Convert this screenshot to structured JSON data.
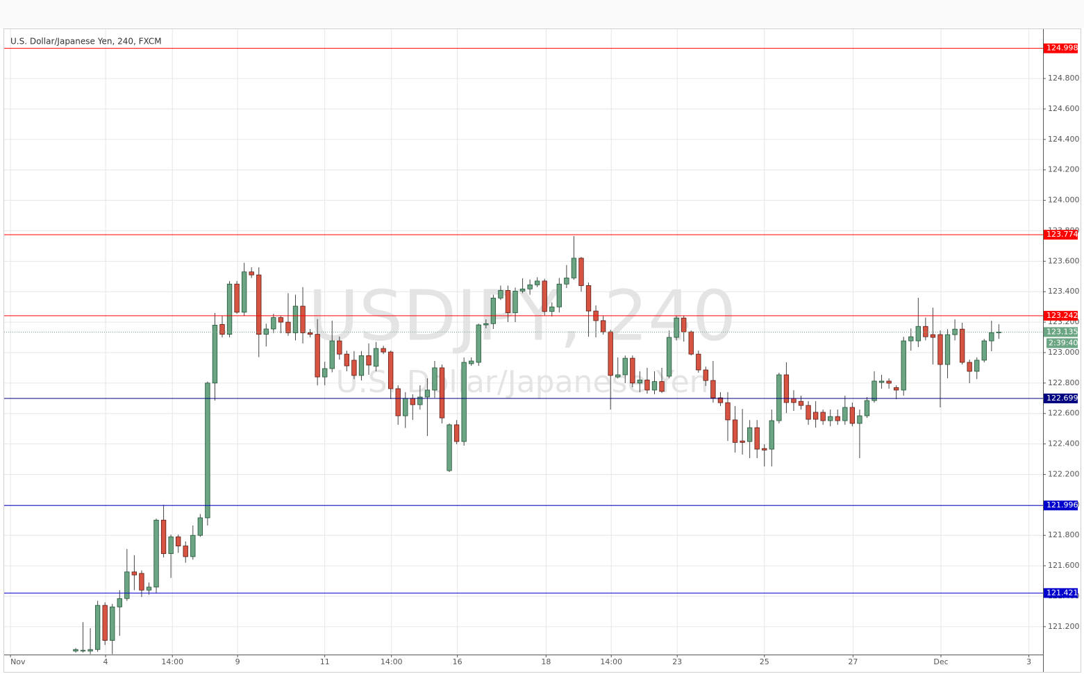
{
  "chart_data": {
    "type": "candlestick",
    "title": "U.S. Dollar/Japanese Yen, 240, FXCM",
    "watermark": "USDJPY, 240",
    "watermark_subtitle": "U.S. Dollar/Japanese Yen",
    "up_color": "#6ba583",
    "down_color": "#d75442",
    "open": [
      121.04,
      121.04,
      121.04,
      121.05,
      121.34,
      121.11,
      121.33,
      121.385,
      121.56,
      121.55,
      121.44,
      121.46,
      121.9,
      121.68,
      121.79,
      121.73,
      121.66,
      121.8,
      121.915,
      122.8,
      123.185,
      123.12,
      123.45,
      123.265,
      123.53,
      123.51,
      123.12,
      123.155,
      123.23,
      123.2,
      123.13,
      123.305,
      123.13,
      123.12,
      122.84,
      122.895,
      123.077,
      122.99,
      122.95,
      122.85,
      122.98,
      122.91,
      123.027,
      123.004,
      122.763,
      122.585,
      122.7,
      122.658,
      122.708,
      122.754,
      122.9,
      122.225,
      122.526,
      122.416,
      122.927,
      122.936,
      123.182,
      123.19,
      123.358,
      123.408,
      123.262,
      123.404,
      123.418,
      123.445,
      123.47,
      123.27,
      123.3,
      123.45,
      123.49,
      123.62,
      123.44,
      123.273,
      123.21,
      123.136,
      122.84,
      122.854,
      122.963,
      122.8,
      122.82,
      122.754,
      122.81,
      122.845,
      123.1,
      123.227,
      123.136,
      122.99,
      122.886,
      122.817,
      122.703,
      122.671,
      122.558,
      122.42,
      122.416,
      122.507,
      122.37,
      122.366,
      122.553,
      122.854,
      122.699,
      122.68,
      122.653,
      122.608,
      122.608,
      122.553,
      122.58,
      122.553,
      122.64,
      122.535,
      122.585,
      122.685,
      122.804,
      122.813,
      122.77,
      122.754,
      123.077,
      123.077,
      123.172,
      123.118,
      123.118,
      122.922,
      123.118,
      123.154,
      122.936,
      122.877,
      122.95,
      123.077,
      123.131
    ],
    "high": [
      121.06,
      121.23,
      121.19,
      121.37,
      121.36,
      121.35,
      121.44,
      121.71,
      121.67,
      121.57,
      121.49,
      121.91,
      122.0,
      121.805,
      121.805,
      121.76,
      121.865,
      121.94,
      122.81,
      123.26,
      123.24,
      123.47,
      123.47,
      123.59,
      123.56,
      123.56,
      123.19,
      123.255,
      123.24,
      123.39,
      123.38,
      123.43,
      123.155,
      123.22,
      122.94,
      123.21,
      123.105,
      123.013,
      123.01,
      123.01,
      123.06,
      123.07,
      123.045,
      123.013,
      122.785,
      122.74,
      122.726,
      122.785,
      122.831,
      122.945,
      122.922,
      122.535,
      122.557,
      122.968,
      122.968,
      123.19,
      123.218,
      123.38,
      123.44,
      123.44,
      123.427,
      123.488,
      123.48,
      123.495,
      123.485,
      123.33,
      123.49,
      123.575,
      123.765,
      123.628,
      123.46,
      123.31,
      123.24,
      123.15,
      122.968,
      122.981,
      122.981,
      122.877,
      122.9,
      122.877,
      122.9,
      123.145,
      123.241,
      123.241,
      123.145,
      123.013,
      122.908,
      122.945,
      122.74,
      122.74,
      122.649,
      122.63,
      122.557,
      122.557,
      122.398,
      122.626,
      122.868,
      122.936,
      122.753,
      122.717,
      122.681,
      122.681,
      122.626,
      122.626,
      122.626,
      122.717,
      122.672,
      122.626,
      122.708,
      122.877,
      122.854,
      122.831,
      122.785,
      123.104,
      123.158,
      123.36,
      123.23,
      123.295,
      123.145,
      123.154,
      123.218,
      123.196,
      122.954,
      122.968,
      123.09,
      123.209,
      123.186
    ],
    "low": [
      121.03,
      121.03,
      121.02,
      121.035,
      121.08,
      121.02,
      121.14,
      121.37,
      121.44,
      121.395,
      121.41,
      121.42,
      121.655,
      121.52,
      121.685,
      121.62,
      121.64,
      121.79,
      121.865,
      122.685,
      123.1,
      123.1,
      123.255,
      123.24,
      123.49,
      122.97,
      123.04,
      123.127,
      123.127,
      123.11,
      123.08,
      123.06,
      123.1,
      122.785,
      122.785,
      122.87,
      122.954,
      122.877,
      122.826,
      122.817,
      122.854,
      122.877,
      122.99,
      122.695,
      122.526,
      122.505,
      122.558,
      122.626,
      122.452,
      122.703,
      122.535,
      122.216,
      122.398,
      122.389,
      122.913,
      122.913,
      123.159,
      123.155,
      123.345,
      123.2,
      123.2,
      123.39,
      123.38,
      123.43,
      123.245,
      123.237,
      123.264,
      123.424,
      123.478,
      123.4,
      123.104,
      123.1,
      123.118,
      122.626,
      122.83,
      122.8,
      122.772,
      122.74,
      122.73,
      122.726,
      122.735,
      122.831,
      123.08,
      123.072,
      122.981,
      122.868,
      122.781,
      122.671,
      122.649,
      122.42,
      122.343,
      122.33,
      122.307,
      122.307,
      122.252,
      122.252,
      122.535,
      122.603,
      122.617,
      122.626,
      122.526,
      122.507,
      122.526,
      122.516,
      122.526,
      122.526,
      122.516,
      122.307,
      122.571,
      122.671,
      122.763,
      122.763,
      122.694,
      122.717,
      123.013,
      123.036,
      123.08,
      122.922,
      122.64,
      122.831,
      123.08,
      122.922,
      122.799,
      122.826,
      122.936,
      123.009,
      123.09
    ],
    "close": [
      121.05,
      121.045,
      121.05,
      121.34,
      121.11,
      121.33,
      121.385,
      121.56,
      121.54,
      121.44,
      121.46,
      121.9,
      121.68,
      121.79,
      121.73,
      121.66,
      121.8,
      121.915,
      122.8,
      123.18,
      123.12,
      123.45,
      123.265,
      123.53,
      123.51,
      123.12,
      123.155,
      123.23,
      123.2,
      123.13,
      123.305,
      123.13,
      123.12,
      122.84,
      122.895,
      123.077,
      122.99,
      122.913,
      122.85,
      122.98,
      122.918,
      123.027,
      123.004,
      122.763,
      122.585,
      122.7,
      122.658,
      122.708,
      122.754,
      122.9,
      122.571,
      122.526,
      122.416,
      122.936,
      122.945,
      123.182,
      123.19,
      123.358,
      123.408,
      123.262,
      123.404,
      123.418,
      123.445,
      123.47,
      123.27,
      123.3,
      123.45,
      123.49,
      123.62,
      123.44,
      123.273,
      123.21,
      123.136,
      122.85,
      122.854,
      122.963,
      122.8,
      122.82,
      122.754,
      122.81,
      122.745,
      123.1,
      123.227,
      123.136,
      122.99,
      122.886,
      122.817,
      122.703,
      122.671,
      122.558,
      122.41,
      122.41,
      122.507,
      122.366,
      122.36,
      122.553,
      122.854,
      122.672,
      122.672,
      122.653,
      122.562,
      122.562,
      122.553,
      122.58,
      122.553,
      122.64,
      122.535,
      122.585,
      122.685,
      122.813,
      122.813,
      122.799,
      122.754,
      123.077,
      123.104,
      123.172,
      123.104,
      123.1,
      122.922,
      123.118,
      123.154,
      122.936,
      122.877,
      122.95,
      123.077,
      123.131,
      123.135
    ],
    "xlim": [
      -9.76,
      132.03
    ],
    "xticks": [
      {
        "value": -8.9,
        "label": "Nov"
      },
      {
        "value": 4.08,
        "label": "4"
      },
      {
        "value": 13.2,
        "label": "14:00"
      },
      {
        "value": 22.1,
        "label": "9"
      },
      {
        "value": 34.0,
        "label": "11"
      },
      {
        "value": 43.1,
        "label": "14:00"
      },
      {
        "value": 52.1,
        "label": "16"
      },
      {
        "value": 64.2,
        "label": "18"
      },
      {
        "value": 73.1,
        "label": "14:00"
      },
      {
        "value": 82.1,
        "label": "23"
      },
      {
        "value": 94.0,
        "label": "25"
      },
      {
        "value": 106.1,
        "label": "27"
      },
      {
        "value": 118.1,
        "label": "Dec"
      },
      {
        "value": 130.1,
        "label": "3"
      }
    ],
    "ylim": [
      121.017,
      125.124
    ],
    "yticks": [
      {
        "value": 121.2,
        "label": "121.200"
      },
      {
        "value": 121.4,
        "label": "121.400"
      },
      {
        "value": 121.6,
        "label": "121.600"
      },
      {
        "value": 121.8,
        "label": "121.800"
      },
      {
        "value": 122.0,
        "label": "122.000"
      },
      {
        "value": 122.2,
        "label": "122.200"
      },
      {
        "value": 122.4,
        "label": "122.400"
      },
      {
        "value": 122.6,
        "label": "122.600"
      },
      {
        "value": 122.8,
        "label": "122.800"
      },
      {
        "value": 123.0,
        "label": "123.000"
      },
      {
        "value": 123.2,
        "label": "123.200"
      },
      {
        "value": 123.4,
        "label": "123.400"
      },
      {
        "value": 123.6,
        "label": "123.600"
      },
      {
        "value": 123.8,
        "label": "123.800"
      },
      {
        "value": 124.0,
        "label": "124.000"
      },
      {
        "value": 124.2,
        "label": "124.200"
      },
      {
        "value": 124.4,
        "label": "124.400"
      },
      {
        "value": 124.6,
        "label": "124.600"
      },
      {
        "value": 124.8,
        "label": "124.800"
      }
    ],
    "grid": true,
    "levels": [
      {
        "value": 124.998,
        "color": "#ff0000"
      },
      {
        "value": 123.774,
        "color": "#ff0000"
      },
      {
        "value": 123.242,
        "color": "#ff0000"
      },
      {
        "value": 122.699,
        "color": "#000080"
      },
      {
        "value": 121.996,
        "color": "#0000cc"
      },
      {
        "value": 121.421,
        "color": "#0000cc"
      }
    ],
    "last_price": {
      "value": 123.135,
      "countdown": "2:39:40",
      "color": "#6ba583"
    }
  }
}
